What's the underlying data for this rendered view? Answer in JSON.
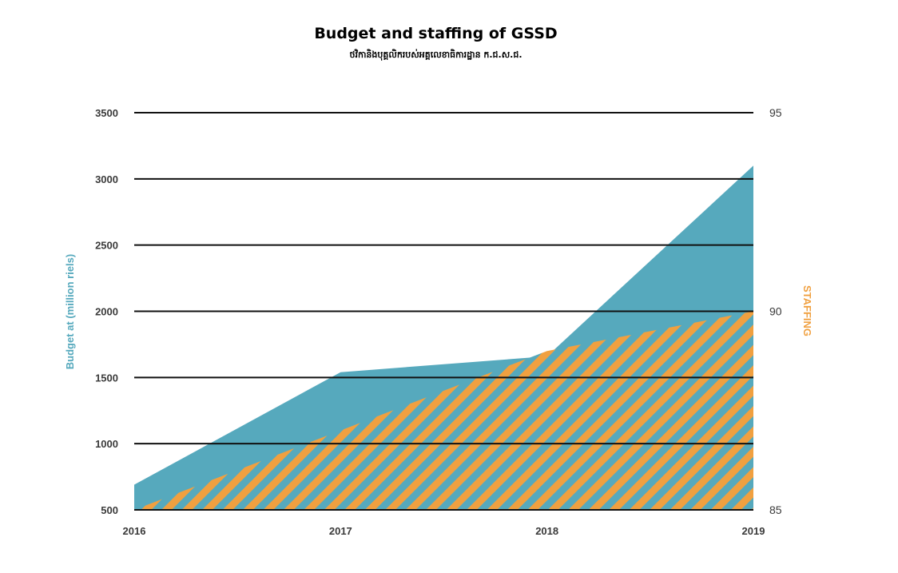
{
  "chart_data": {
    "type": "area",
    "title": "Budget and staffing of GSSD",
    "subtitle": "ថវិកានិងបុគ្គលិករបស់អគ្គលេខាធិការដ្ឋាន ក.ជ.ស.ជ.",
    "x": [
      "2016",
      "2017",
      "2018",
      "2019"
    ],
    "y_left": {
      "label": "Budget at (million riels)",
      "ylim": [
        500,
        3500
      ],
      "ticks": [
        500,
        1000,
        1500,
        2000,
        2500,
        3000,
        3500
      ]
    },
    "y_right": {
      "label": "STAFFING",
      "ylim": [
        85,
        95
      ],
      "ticks": [
        85,
        90,
        95
      ]
    },
    "grid": true,
    "series": [
      {
        "name": "Budget at (million riels)",
        "axis": "left",
        "color": "#56a9bd",
        "points": [
          [
            2016,
            690
          ],
          [
            2017,
            1540
          ],
          [
            2018,
            1660
          ],
          [
            2019,
            3100
          ]
        ]
      },
      {
        "name": "STAFFING",
        "axis": "right",
        "color": "#f0a040",
        "pattern": "diagonal-hatch",
        "points": [
          [
            2016,
            85
          ],
          [
            2017,
            87
          ],
          [
            2018,
            89
          ],
          [
            2019,
            90
          ]
        ]
      }
    ]
  }
}
